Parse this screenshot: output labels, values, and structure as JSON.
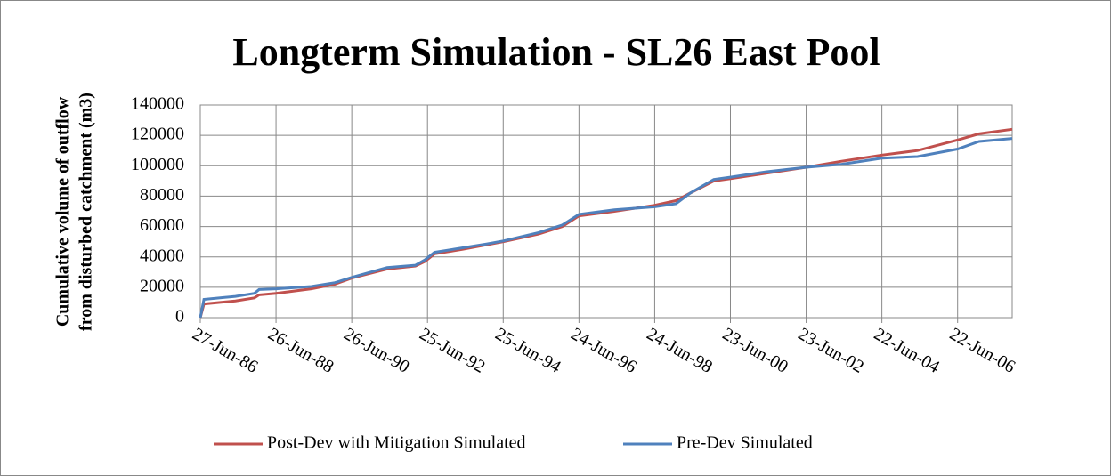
{
  "chart_data": {
    "type": "line",
    "title": "Longterm Simulation - SL26 East Pool",
    "y_label": [
      "Cumulative volume of outflow",
      "from disturbed catchment (m3)"
    ],
    "x": [
      "1986-06-27",
      "1986-08-01",
      "1987-06-01",
      "1987-12-01",
      "1988-01-15",
      "1988-06-26",
      "1989-06-01",
      "1990-01-15",
      "1990-06-26",
      "1991-06-01",
      "1992-03-01",
      "1992-06-01",
      "1992-09-01",
      "1993-06-01",
      "1994-01-15",
      "1994-06-25",
      "1995-06-01",
      "1996-01-15",
      "1996-06-24",
      "1997-06-01",
      "1998-06-24",
      "1999-01-15",
      "1999-06-01",
      "2000-01-15",
      "2000-06-23",
      "2001-06-01",
      "2002-06-23",
      "2003-06-01",
      "2004-06-22",
      "2005-06-01",
      "2006-06-22",
      "2007-01-15",
      "2007-11-30"
    ],
    "series": [
      {
        "name": "Post-Dev with Mitigation Simulated",
        "color": "#c0504d",
        "values": [
          0,
          9000,
          11000,
          13000,
          15000,
          16000,
          19000,
          22000,
          26000,
          32000,
          34000,
          37000,
          42000,
          45000,
          48000,
          50000,
          55000,
          60000,
          67000,
          70000,
          74000,
          77000,
          82000,
          90000,
          91500,
          95000,
          99000,
          103000,
          107000,
          110000,
          117000,
          121000,
          124000
        ]
      },
      {
        "name": "Pre-Dev Simulated",
        "color": "#4f81bd",
        "values": [
          0,
          12000,
          14000,
          16000,
          18500,
          19000,
          20500,
          23000,
          26500,
          33000,
          34500,
          38000,
          43000,
          46000,
          48500,
          50500,
          56000,
          61000,
          68000,
          71000,
          73000,
          75000,
          82000,
          91000,
          92500,
          96000,
          99000,
          101000,
          105000,
          106000,
          111000,
          116000,
          118000
        ]
      }
    ],
    "xlim": [
      "1986-06-27",
      "2007-11-30"
    ],
    "xticks": [
      {
        "value": "1986-06-27",
        "label": "27-Jun-86"
      },
      {
        "value": "1988-06-26",
        "label": "26-Jun-88"
      },
      {
        "value": "1990-06-26",
        "label": "26-Jun-90"
      },
      {
        "value": "1992-06-25",
        "label": "25-Jun-92"
      },
      {
        "value": "1994-06-25",
        "label": "25-Jun-94"
      },
      {
        "value": "1996-06-24",
        "label": "24-Jun-96"
      },
      {
        "value": "1998-06-24",
        "label": "24-Jun-98"
      },
      {
        "value": "2000-06-23",
        "label": "23-Jun-00"
      },
      {
        "value": "2002-06-23",
        "label": "23-Jun-02"
      },
      {
        "value": "2004-06-22",
        "label": "22-Jun-04"
      },
      {
        "value": "2006-06-22",
        "label": "22-Jun-06"
      }
    ],
    "ylim": [
      0,
      140000
    ],
    "yticks": [
      0,
      20000,
      40000,
      60000,
      80000,
      100000,
      120000,
      140000
    ],
    "grid": true,
    "legend": "bottom"
  }
}
